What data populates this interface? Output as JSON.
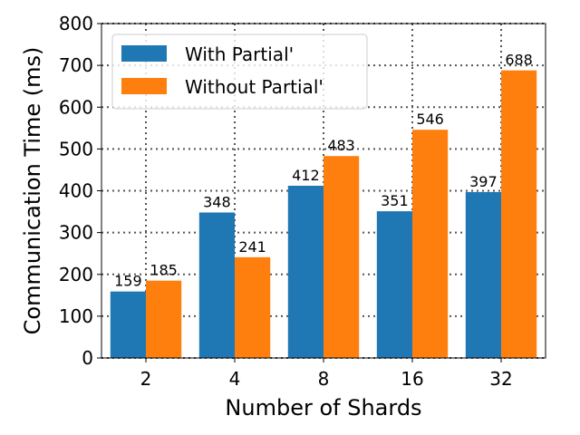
{
  "chart_data": {
    "type": "bar",
    "title": "",
    "xlabel": "Number of Shards",
    "ylabel": "Communication Time (ms)",
    "categories": [
      "2",
      "4",
      "8",
      "16",
      "32"
    ],
    "series": [
      {
        "name": "With Partial'",
        "color": "#1f77b4",
        "values": [
          159,
          348,
          412,
          351,
          397
        ]
      },
      {
        "name": "Without Partial'",
        "color": "#ff7f0e",
        "values": [
          185,
          241,
          483,
          546,
          688
        ]
      }
    ],
    "ylim": [
      0,
      800
    ],
    "yticks": [
      0,
      100,
      200,
      300,
      400,
      500,
      600,
      700,
      800
    ],
    "grid": true,
    "legend_position": "top-left"
  }
}
